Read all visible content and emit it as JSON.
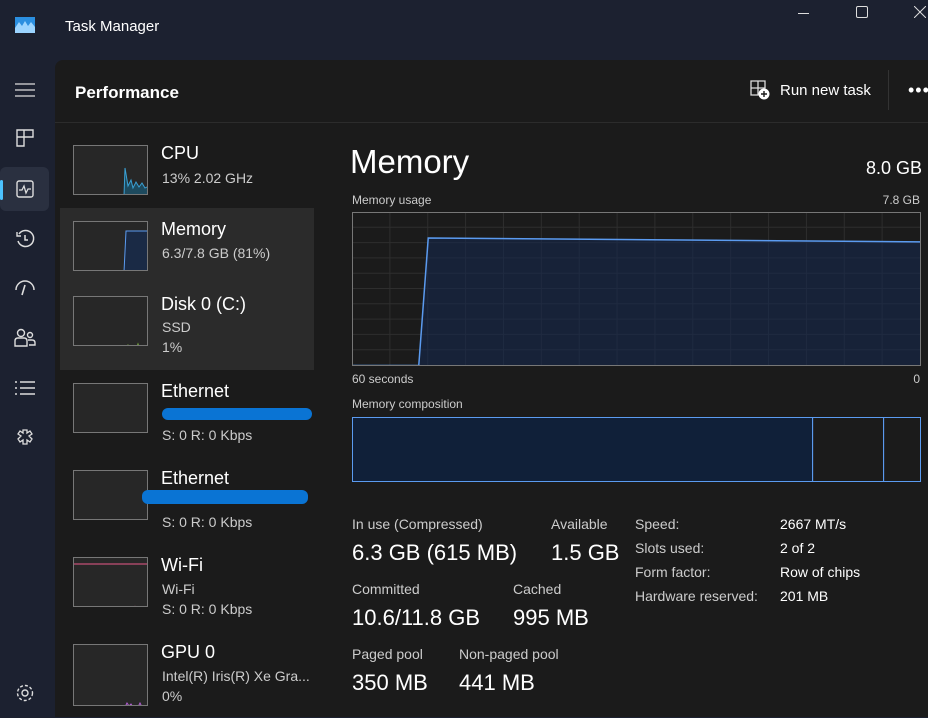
{
  "window": {
    "title": "Task Manager",
    "icon": "task-manager-logo"
  },
  "rail": {
    "items": [
      "hamburger-icon",
      "processes-icon",
      "performance-icon",
      "app-history-icon",
      "startup-apps-icon",
      "users-icon",
      "details-icon",
      "services-icon",
      "settings-icon"
    ],
    "active": "performance"
  },
  "header": {
    "title": "Performance",
    "run_new_task": "Run new task",
    "more": "•••"
  },
  "devices": [
    {
      "title": "CPU",
      "sub": [
        "13%  2.02 GHz"
      ],
      "color": "#3aa0d4"
    },
    {
      "title": "Memory",
      "sub": [
        "6.3/7.8 GB (81%)"
      ],
      "color": "#5b9bf0"
    },
    {
      "title": "Disk 0 (C:)",
      "sub": [
        "SSD",
        "1%"
      ],
      "color": "#7cb342"
    },
    {
      "title": "Ethernet",
      "sub": [
        "S: 0 R: 0 Kbps"
      ],
      "redacted": true
    },
    {
      "title": "Ethernet",
      "sub": [
        "S: 0 R: 0 Kbps"
      ],
      "redacted": true
    },
    {
      "title": "Wi-Fi",
      "sub": [
        "Wi-Fi",
        "S: 0 R: 0 Kbps"
      ],
      "color": "#e8588a"
    },
    {
      "title": "GPU 0",
      "sub": [
        "Intel(R) Iris(R) Xe Gra...",
        "0%"
      ],
      "color": "#b45fd6"
    }
  ],
  "main": {
    "title": "Memory",
    "total": "8.0 GB",
    "usage_label": "Memory usage",
    "usage_max": "7.8 GB",
    "time_left": "60 seconds",
    "time_right": "0",
    "composition_label": "Memory composition",
    "stats": {
      "in_use_label": "In use (Compressed)",
      "in_use": "6.3 GB (615 MB)",
      "available_label": "Available",
      "available": "1.5 GB",
      "committed_label": "Committed",
      "committed": "10.6/11.8 GB",
      "cached_label": "Cached",
      "cached": "995 MB",
      "paged_label": "Paged pool",
      "paged": "350 MB",
      "nonpaged_label": "Non-paged pool",
      "nonpaged": "441 MB"
    },
    "props": [
      {
        "k": "Speed:",
        "v": "2667 MT/s"
      },
      {
        "k": "Slots used:",
        "v": "2 of 2"
      },
      {
        "k": "Form factor:",
        "v": "Row of chips"
      },
      {
        "k": "Hardware reserved:",
        "v": "201 MB"
      }
    ]
  },
  "chart_data": {
    "type": "area",
    "title": "Memory usage",
    "xlabel_left": "60 seconds",
    "xlabel_right": "0",
    "ylim": [
      0,
      7.8
    ],
    "unit": "GB",
    "x": [
      60,
      53,
      52,
      0
    ],
    "values": [
      0,
      0,
      6.5,
      6.3
    ],
    "color": "#5b9bf0",
    "composition": {
      "in_use_fraction": 0.81,
      "standby_fraction": 0.125,
      "free_fraction": 0.065
    }
  }
}
